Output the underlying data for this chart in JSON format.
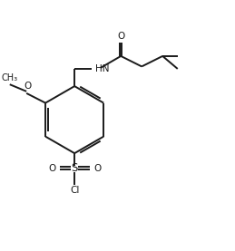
{
  "bg_color": "#ffffff",
  "line_color": "#1a1a1a",
  "line_width": 1.4,
  "figsize": [
    2.59,
    2.77
  ],
  "dpi": 100,
  "xlim": [
    0,
    10
  ],
  "ylim": [
    0,
    10.7
  ]
}
